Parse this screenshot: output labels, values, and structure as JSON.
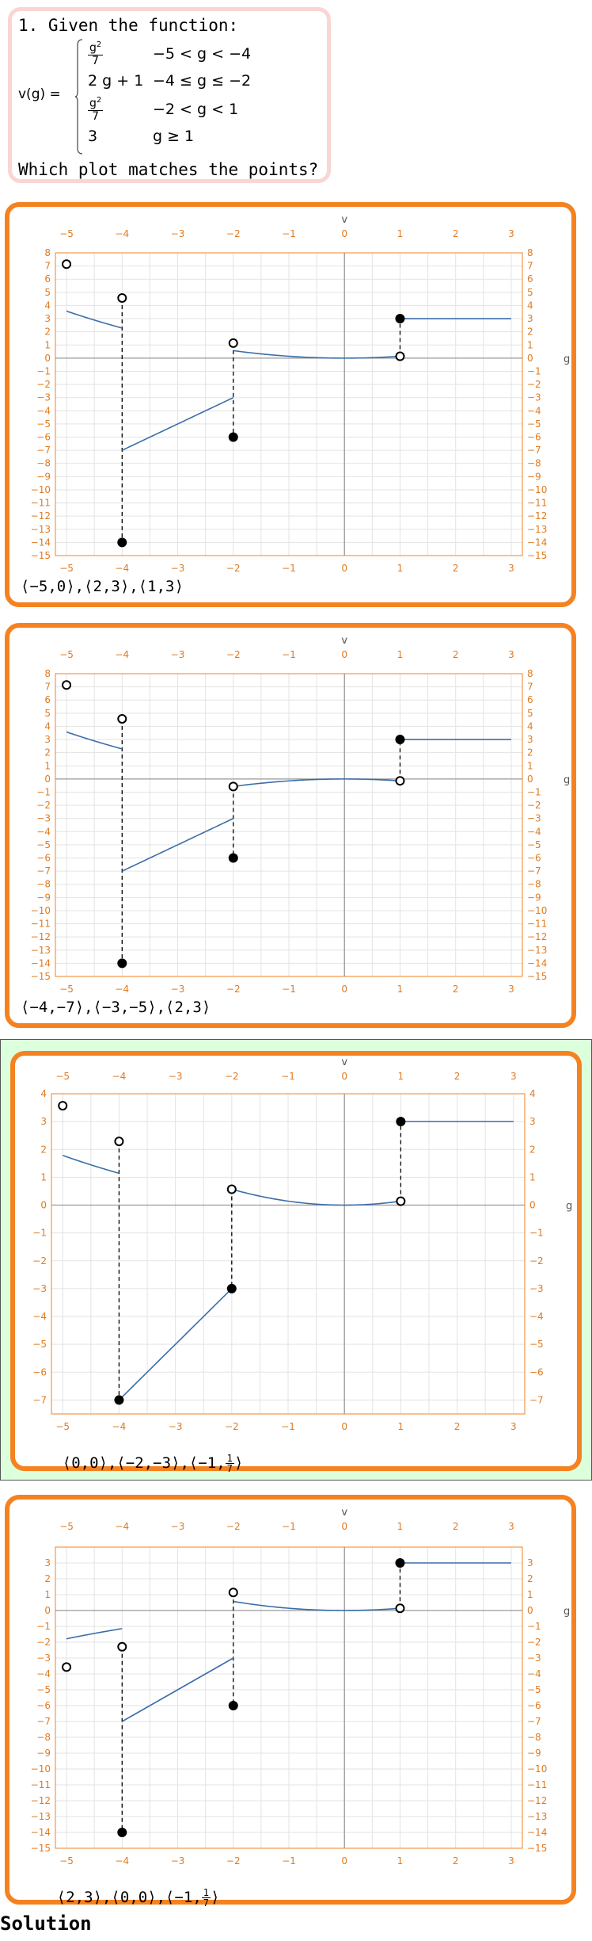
{
  "question": {
    "title": "1. Given the function:",
    "fn_name": "v(g) =",
    "cases": [
      {
        "expr_num": "g2",
        "expr_den": "7",
        "cond": "−5 < g < −4"
      },
      {
        "expr": "2 g + 1",
        "cond": "−4 ≤ g ≤ −2"
      },
      {
        "expr_num": "g2",
        "expr_den": "7",
        "cond": "−2 < g < 1"
      },
      {
        "expr": "3",
        "cond": "g ≥ 1"
      }
    ],
    "prompt": "Which plot matches the points?"
  },
  "options": [
    {
      "answer": "⟨−5,0⟩,⟨2,3⟩,⟨1,3⟩",
      "chart_data": {
        "type": "line",
        "xlabel": "g",
        "ylabel": "v",
        "xlim": [
          -5.2,
          3.2
        ],
        "ylim": [
          -15,
          8
        ],
        "xticks": [
          -5,
          -4,
          -3,
          -2,
          -1,
          0,
          1,
          2,
          3
        ],
        "yticks": [
          8,
          7,
          6,
          5,
          4,
          3,
          2,
          1,
          0,
          -1,
          -2,
          -3,
          -4,
          -5,
          -6,
          -7,
          -8,
          -9,
          -10,
          -11,
          -12,
          -13,
          -14,
          -15
        ],
        "segments": [
          {
            "fn": "quad_a",
            "from": -5,
            "to": -4
          },
          {
            "fn": "linear",
            "from": -4,
            "to": -2
          },
          {
            "fn": "quad_b",
            "from": -2,
            "to": 1
          },
          {
            "fn": "const3",
            "from": 1,
            "to": 3
          }
        ],
        "open_points": [
          [
            -5,
            7.14
          ],
          [
            -4,
            4.57
          ],
          [
            -2,
            1.14
          ],
          [
            1,
            0.14
          ]
        ],
        "closed_points": [
          [
            -4,
            -14
          ],
          [
            -2,
            -6
          ],
          [
            1,
            3
          ]
        ],
        "dashed": [
          [
            -4,
            4.57,
            -14
          ],
          [
            -2,
            1.14,
            -6
          ],
          [
            1,
            0.14,
            3
          ]
        ]
      }
    },
    {
      "answer": "⟨−4,−7⟩,⟨−3,−5⟩,⟨2,3⟩",
      "chart_data": {
        "type": "line",
        "xlabel": "g",
        "ylabel": "v",
        "xlim": [
          -5.2,
          3.2
        ],
        "ylim": [
          -15,
          8
        ],
        "xticks": [
          -5,
          -4,
          -3,
          -2,
          -1,
          0,
          1,
          2,
          3
        ],
        "yticks": [
          8,
          7,
          6,
          5,
          4,
          3,
          2,
          1,
          0,
          -1,
          -2,
          -3,
          -4,
          -5,
          -6,
          -7,
          -8,
          -9,
          -10,
          -11,
          -12,
          -13,
          -14,
          -15
        ],
        "segments": [
          {
            "fn": "quad_a",
            "from": -5,
            "to": -4
          },
          {
            "fn": "linear",
            "from": -4,
            "to": -2
          },
          {
            "fn": "negquad",
            "from": -2,
            "to": 1
          },
          {
            "fn": "const3",
            "from": 1,
            "to": 3
          }
        ],
        "open_points": [
          [
            -5,
            7.14
          ],
          [
            -4,
            4.57
          ],
          [
            -2,
            -0.57
          ],
          [
            1,
            -0.14
          ]
        ],
        "closed_points": [
          [
            -4,
            -14
          ],
          [
            -2,
            -6
          ],
          [
            1,
            3
          ]
        ],
        "dashed": [
          [
            -4,
            4.57,
            -14
          ],
          [
            -2,
            -0.57,
            -6
          ],
          [
            1,
            -0.14,
            3
          ]
        ]
      }
    },
    {
      "answer": "⟨0,0⟩,⟨−2,−3⟩,⟨−1,",
      "answer_frac_num": "1",
      "answer_frac_den": "7",
      "answer_tail": "⟩",
      "chart_data": {
        "type": "line",
        "xlabel": "g",
        "ylabel": "v",
        "xlim": [
          -5.2,
          3.2
        ],
        "ylim": [
          -7.5,
          4
        ],
        "xticks": [
          -5,
          -4,
          -3,
          -2,
          -1,
          0,
          1,
          2,
          3
        ],
        "yticks": [
          4,
          3,
          2,
          1,
          0,
          -1,
          -2,
          -3,
          -4,
          -5,
          -6,
          -7
        ],
        "segments": [
          {
            "fn": "quad_a2",
            "from": -5,
            "to": -4
          },
          {
            "fn": "linear2",
            "from": -4,
            "to": -2
          },
          {
            "fn": "quad_b",
            "from": -2,
            "to": 1
          },
          {
            "fn": "const3",
            "from": 1,
            "to": 3
          }
        ],
        "open_points": [
          [
            -5,
            3.57
          ],
          [
            -4,
            2.29
          ],
          [
            -2,
            0.57
          ],
          [
            1,
            0.14
          ]
        ],
        "closed_points": [
          [
            -4,
            -7
          ],
          [
            -2,
            -3
          ],
          [
            1,
            3
          ]
        ],
        "dashed": [
          [
            -4,
            2.29,
            -7
          ],
          [
            -2,
            0.57,
            -3
          ],
          [
            1,
            0.14,
            3
          ]
        ]
      }
    },
    {
      "answer": "⟨2,3⟩,⟨0,0⟩,⟨−1,",
      "answer_frac_num": "1",
      "answer_frac_den": "7",
      "answer_tail": "⟩",
      "chart_data": {
        "type": "line",
        "xlabel": "g",
        "ylabel": "v",
        "xlim": [
          -5.2,
          3.2
        ],
        "ylim": [
          -15,
          4
        ],
        "xticks": [
          -5,
          -4,
          -3,
          -2,
          -1,
          0,
          1,
          2,
          3
        ],
        "yticks": [
          3,
          2,
          1,
          0,
          -1,
          -2,
          -3,
          -4,
          -5,
          -6,
          -7,
          -8,
          -9,
          -10,
          -11,
          -12,
          -13,
          -14,
          -15
        ],
        "segments": [
          {
            "fn": "negquad_a",
            "from": -5,
            "to": -4
          },
          {
            "fn": "linear",
            "from": -4,
            "to": -2
          },
          {
            "fn": "quad_b",
            "from": -2,
            "to": 1
          },
          {
            "fn": "const3",
            "from": 1,
            "to": 3
          }
        ],
        "open_points": [
          [
            -5,
            -3.57
          ],
          [
            -4,
            -2.29
          ],
          [
            -2,
            1.14
          ],
          [
            1,
            0.14
          ]
        ],
        "closed_points": [
          [
            -4,
            -14
          ],
          [
            -2,
            -6
          ],
          [
            1,
            3
          ]
        ],
        "dashed": [
          [
            -4,
            -2.29,
            -14
          ],
          [
            -2,
            1.14,
            -6
          ],
          [
            1,
            0.14,
            3
          ]
        ]
      }
    }
  ],
  "solution_label": "Solution",
  "colors": {
    "accent": "#f58220",
    "curve": "#3a6ea8",
    "correct_bg": "#dcffdc",
    "question_border": "#f9d5d5"
  }
}
